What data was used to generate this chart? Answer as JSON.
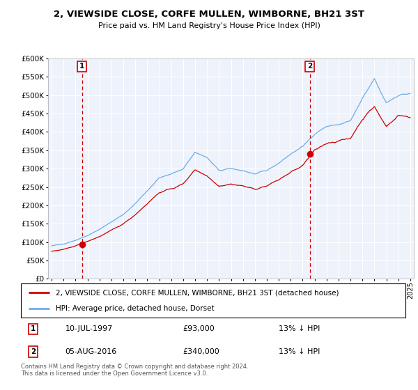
{
  "title1": "2, VIEWSIDE CLOSE, CORFE MULLEN, WIMBORNE, BH21 3ST",
  "title2": "Price paid vs. HM Land Registry's House Price Index (HPI)",
  "legend_line1": "2, VIEWSIDE CLOSE, CORFE MULLEN, WIMBORNE, BH21 3ST (detached house)",
  "legend_line2": "HPI: Average price, detached house, Dorset",
  "sale1_date": "10-JUL-1997",
  "sale1_price": "£93,000",
  "sale1_hpi": "13% ↓ HPI",
  "sale2_date": "05-AUG-2016",
  "sale2_price": "£340,000",
  "sale2_hpi": "13% ↓ HPI",
  "footnote": "Contains HM Land Registry data © Crown copyright and database right 2024.\nThis data is licensed under the Open Government Licence v3.0.",
  "ylim": [
    0,
    600000
  ],
  "yticks": [
    0,
    50000,
    100000,
    150000,
    200000,
    250000,
    300000,
    350000,
    400000,
    450000,
    500000,
    550000,
    600000
  ],
  "hpi_color": "#6aaee8",
  "price_color": "#cc0000",
  "sale1_x": 1997.54,
  "sale2_x": 2016.59,
  "sale1_vline_color": "#cc0000",
  "sale2_vline_color": "#cc0000",
  "background_color": "#eef2fb",
  "grid_color": "#ffffff"
}
